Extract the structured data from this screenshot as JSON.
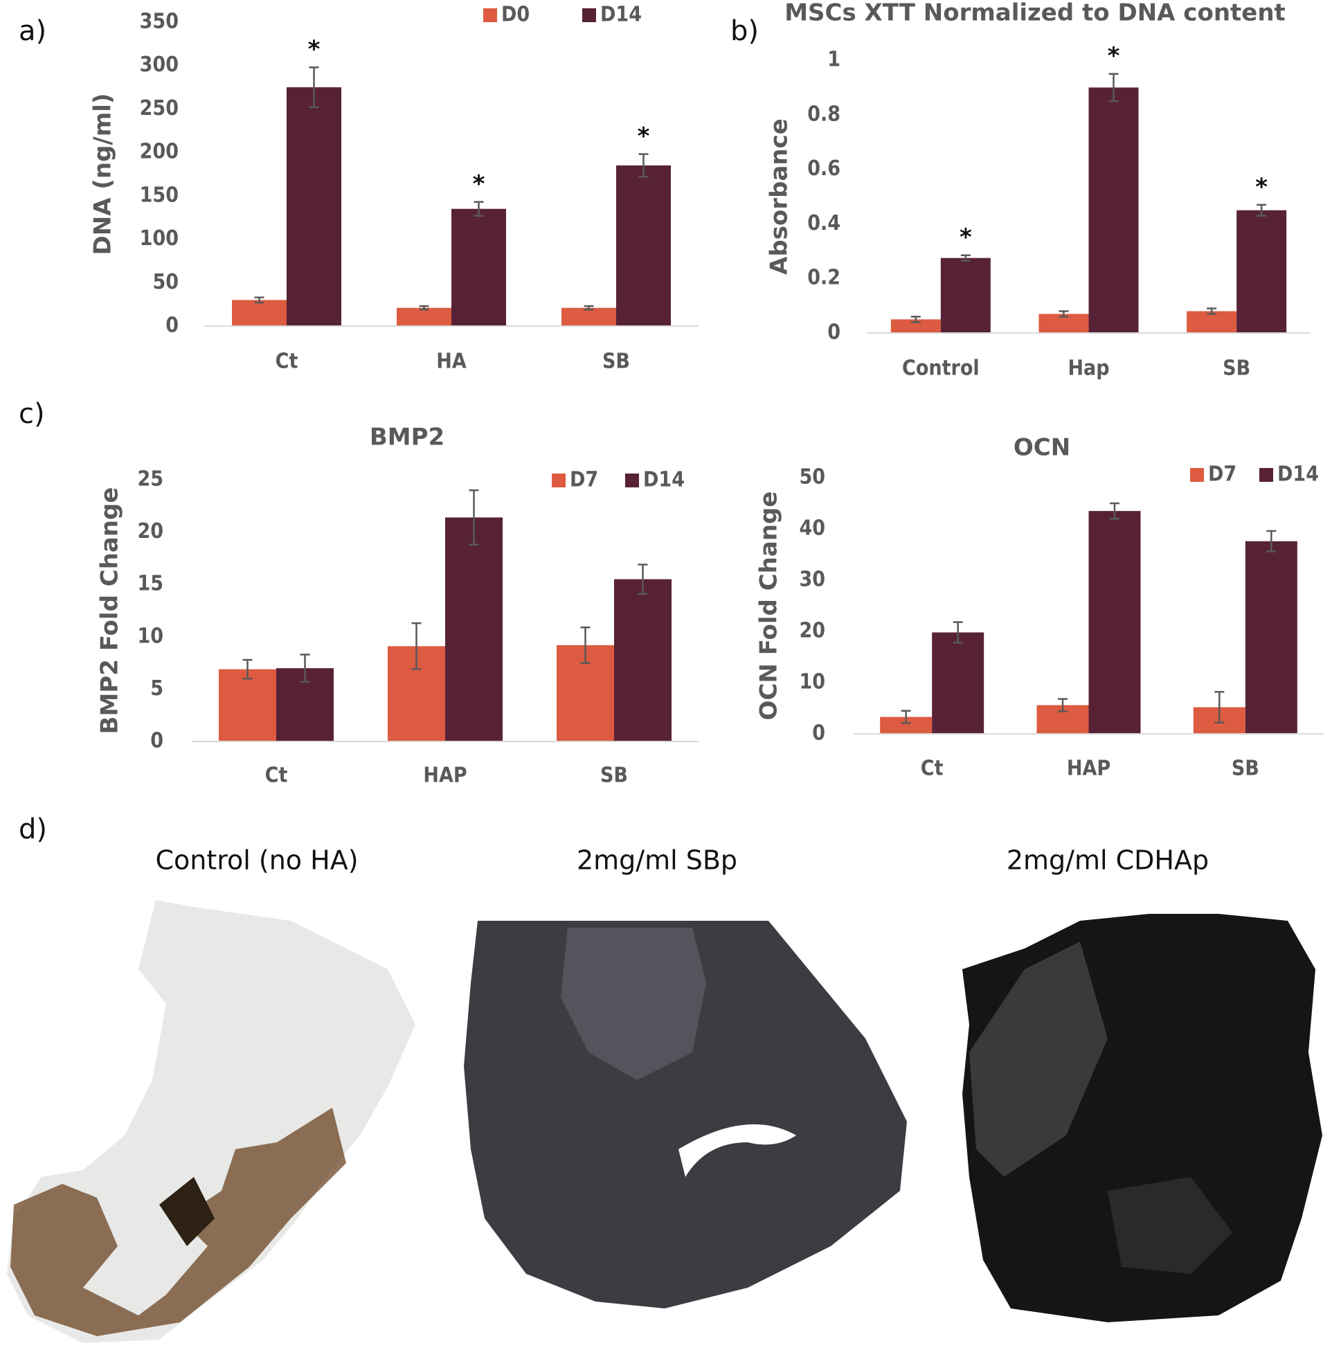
{
  "panel_labels": [
    "a)",
    "b)",
    "c)",
    "d)"
  ],
  "chart_data": [
    {
      "type": "bar",
      "y_label": "DNA (ng/ml)",
      "categories": [
        "Ct",
        "HA",
        "SB"
      ],
      "series": [
        {
          "name": "D0",
          "color": "#dd5b40",
          "values": [
            30,
            21,
            21
          ],
          "errors": [
            3,
            2,
            2
          ]
        },
        {
          "name": "D14",
          "color": "#582236",
          "values": [
            275,
            135,
            185
          ],
          "errors": [
            23,
            8,
            13
          ]
        }
      ],
      "significance": [
        "*",
        "*",
        "*"
      ],
      "ylim": [
        0,
        350
      ],
      "yticks": [
        0,
        50,
        100,
        150,
        200,
        250,
        300,
        350
      ],
      "grid": false
    },
    {
      "type": "bar",
      "title": "MSCs XTT Normalized to DNA content",
      "y_label": "Absorbance",
      "categories": [
        "Control",
        "Hap",
        "SB"
      ],
      "series": [
        {
          "color": "#dd5b40",
          "values": [
            0.05,
            0.07,
            0.08
          ],
          "errors": [
            0.01,
            0.01,
            0.01
          ]
        },
        {
          "color": "#582236",
          "values": [
            0.275,
            0.9,
            0.45
          ],
          "errors": [
            0.01,
            0.05,
            0.02
          ]
        }
      ],
      "significance": [
        "*",
        "*",
        "*"
      ],
      "ylim": [
        0,
        1
      ],
      "yticks": [
        0,
        0.2,
        0.4,
        0.6,
        0.8,
        1
      ],
      "grid": false
    },
    {
      "type": "bar",
      "title": "BMP2",
      "y_label": "BMP2 Fold Change",
      "categories": [
        "Ct",
        "HAP",
        "SB"
      ],
      "series": [
        {
          "name": "D7",
          "color": "#dd5b40",
          "values": [
            6.9,
            9.1,
            9.2
          ],
          "errors": [
            0.9,
            2.2,
            1.7
          ]
        },
        {
          "name": "D14",
          "color": "#582236",
          "values": [
            7.0,
            21.4,
            15.5
          ],
          "errors": [
            1.3,
            2.6,
            1.4
          ]
        }
      ],
      "ylim": [
        0,
        25
      ],
      "yticks": [
        0,
        5,
        10,
        15,
        20,
        25
      ],
      "grid": false
    },
    {
      "type": "bar",
      "title": "OCN",
      "y_label": "OCN Fold Change",
      "categories": [
        "Ct",
        "HAP",
        "SB"
      ],
      "series": [
        {
          "name": "D7",
          "color": "#dd5b40",
          "values": [
            3.3,
            5.6,
            5.2
          ],
          "errors": [
            1.2,
            1.2,
            3
          ]
        },
        {
          "name": "D14",
          "color": "#582236",
          "values": [
            19.8,
            43.5,
            37.6
          ],
          "errors": [
            2,
            1.5,
            2
          ]
        }
      ],
      "ylim": [
        0,
        50
      ],
      "yticks": [
        0,
        10,
        20,
        30,
        40,
        50
      ],
      "grid": false
    }
  ],
  "images": [
    {
      "title": "Control (no HA)"
    },
    {
      "title": "2mg/ml SBp"
    },
    {
      "title": "2mg/ml CDHAp"
    }
  ]
}
